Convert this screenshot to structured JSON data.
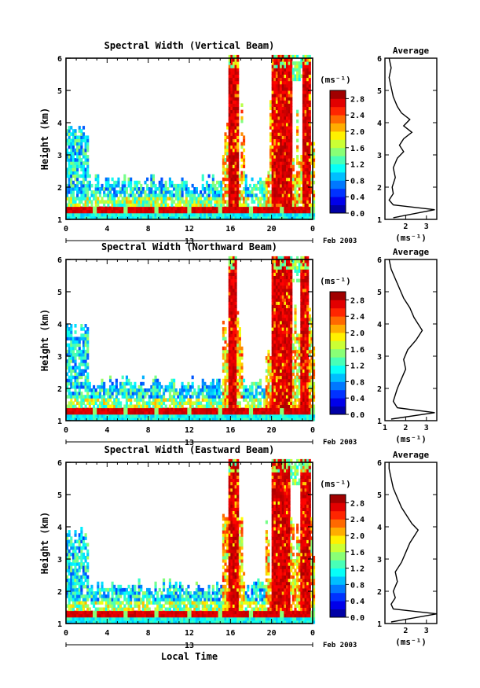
{
  "chart_data": [
    {
      "type": "heatmap",
      "title": "Spectral Width (Vertical Beam)",
      "xlabel": "",
      "ylabel": "Height (km)",
      "xlim": [
        0,
        24
      ],
      "ylim": [
        1,
        6
      ],
      "xticks": [
        "0",
        "4",
        "8",
        "12",
        "16",
        "20",
        "0"
      ],
      "yticks": [
        "1",
        "2",
        "3",
        "4",
        "5",
        "6"
      ],
      "date_day": "13",
      "date_label": "Feb 2003",
      "colorbar": {
        "unit": "(ms⁻¹)",
        "min": 0,
        "max": 3,
        "ticks": [
          "0.0",
          "0.4",
          "0.8",
          "1.2",
          "1.6",
          "2.0",
          "2.4",
          "2.8"
        ]
      },
      "red_columns": [
        [
          15.6,
          16.6
        ],
        [
          19.8,
          21.8
        ],
        [
          22.8,
          23.6
        ]
      ],
      "average": {
        "title": "Average",
        "xlabel": "(ms⁻¹)",
        "xticks": [
          "2",
          "3"
        ],
        "xlim": [
          1,
          3.5
        ],
        "ylim": [
          1,
          6
        ],
        "yticks": [
          "1",
          "2",
          "3",
          "4",
          "5",
          "6"
        ]
      },
      "average_profile": {
        "height": [
          1.05,
          1.3,
          1.45,
          1.6,
          1.8,
          2.0,
          2.3,
          2.6,
          2.9,
          3.1,
          3.3,
          3.5,
          3.7,
          3.9,
          4.1,
          4.3,
          4.5,
          4.8,
          5.1,
          5.4,
          5.7,
          6.0
        ],
        "width": [
          1.4,
          3.4,
          1.4,
          1.2,
          1.4,
          1.35,
          1.5,
          1.4,
          1.6,
          1.9,
          1.7,
          1.9,
          2.3,
          1.9,
          2.2,
          1.8,
          1.6,
          1.4,
          1.3,
          1.2,
          1.3,
          1.2
        ]
      }
    },
    {
      "type": "heatmap",
      "title": "Spectral Width (Northward Beam)",
      "xlabel": "",
      "ylabel": "Height (km)",
      "xlim": [
        0,
        24
      ],
      "ylim": [
        1,
        6
      ],
      "xticks": [
        "0",
        "4",
        "8",
        "12",
        "16",
        "20",
        "0"
      ],
      "yticks": [
        "1",
        "2",
        "3",
        "4",
        "5",
        "6"
      ],
      "date_day": "13",
      "date_label": "Feb 2003",
      "colorbar": {
        "unit": "(ms⁻¹)",
        "min": 0,
        "max": 3,
        "ticks": [
          "0.0",
          "0.4",
          "0.8",
          "1.2",
          "1.6",
          "2.0",
          "2.4",
          "2.8"
        ]
      },
      "red_columns": [
        [
          15.6,
          16.4
        ],
        [
          19.8,
          21.8
        ],
        [
          22.6,
          23.4
        ]
      ],
      "average": {
        "title": "Average",
        "xlabel": "(ms⁻¹)",
        "xticks": [
          "1",
          "2",
          "3"
        ],
        "xlim": [
          1,
          3.5
        ],
        "ylim": [
          1,
          6
        ],
        "yticks": [
          "1",
          "2",
          "3",
          "4",
          "5",
          "6"
        ]
      },
      "average_profile": {
        "height": [
          1.05,
          1.25,
          1.4,
          1.6,
          1.8,
          2.0,
          2.3,
          2.6,
          2.9,
          3.2,
          3.5,
          3.8,
          4.0,
          4.2,
          4.5,
          4.8,
          5.1,
          5.4,
          5.7,
          6.0
        ],
        "width": [
          1.3,
          3.4,
          1.6,
          1.4,
          1.5,
          1.6,
          1.8,
          2.0,
          1.9,
          2.1,
          2.5,
          2.8,
          2.6,
          2.4,
          2.2,
          1.9,
          1.7,
          1.5,
          1.3,
          1.2
        ]
      }
    },
    {
      "type": "heatmap",
      "title": "Spectral Width (Eastward Beam)",
      "xlabel": "Local Time",
      "ylabel": "Height (km)",
      "xlim": [
        0,
        24
      ],
      "ylim": [
        1,
        6
      ],
      "xticks": [
        "0",
        "4",
        "8",
        "12",
        "16",
        "20",
        "0"
      ],
      "yticks": [
        "1",
        "2",
        "3",
        "4",
        "5",
        "6"
      ],
      "date_day": "13",
      "date_label": "Feb 2003",
      "colorbar": {
        "unit": "(ms⁻¹)",
        "min": 0,
        "max": 3,
        "ticks": [
          "0.0",
          "0.4",
          "0.8",
          "1.2",
          "1.6",
          "2.0",
          "2.4",
          "2.8"
        ]
      },
      "red_columns": [
        [
          15.6,
          16.6
        ],
        [
          19.8,
          21.6
        ],
        [
          22.6,
          23.6
        ]
      ],
      "average": {
        "title": "Average",
        "xlabel": "(ms⁻¹)",
        "xticks": [
          "2",
          "3"
        ],
        "xlim": [
          1,
          3.5
        ],
        "ylim": [
          1,
          6
        ],
        "yticks": [
          "1",
          "2",
          "3",
          "4",
          "5",
          "6"
        ]
      },
      "average_profile": {
        "height": [
          1.05,
          1.3,
          1.45,
          1.6,
          1.8,
          2.0,
          2.3,
          2.6,
          2.9,
          3.2,
          3.5,
          3.7,
          3.9,
          4.1,
          4.3,
          4.6,
          4.9,
          5.2,
          5.5,
          5.8,
          6.0
        ],
        "width": [
          1.3,
          3.5,
          1.4,
          1.3,
          1.5,
          1.4,
          1.6,
          1.5,
          1.8,
          2.0,
          2.2,
          2.4,
          2.6,
          2.3,
          2.1,
          1.8,
          1.6,
          1.4,
          1.3,
          1.2,
          1.2
        ]
      }
    }
  ]
}
